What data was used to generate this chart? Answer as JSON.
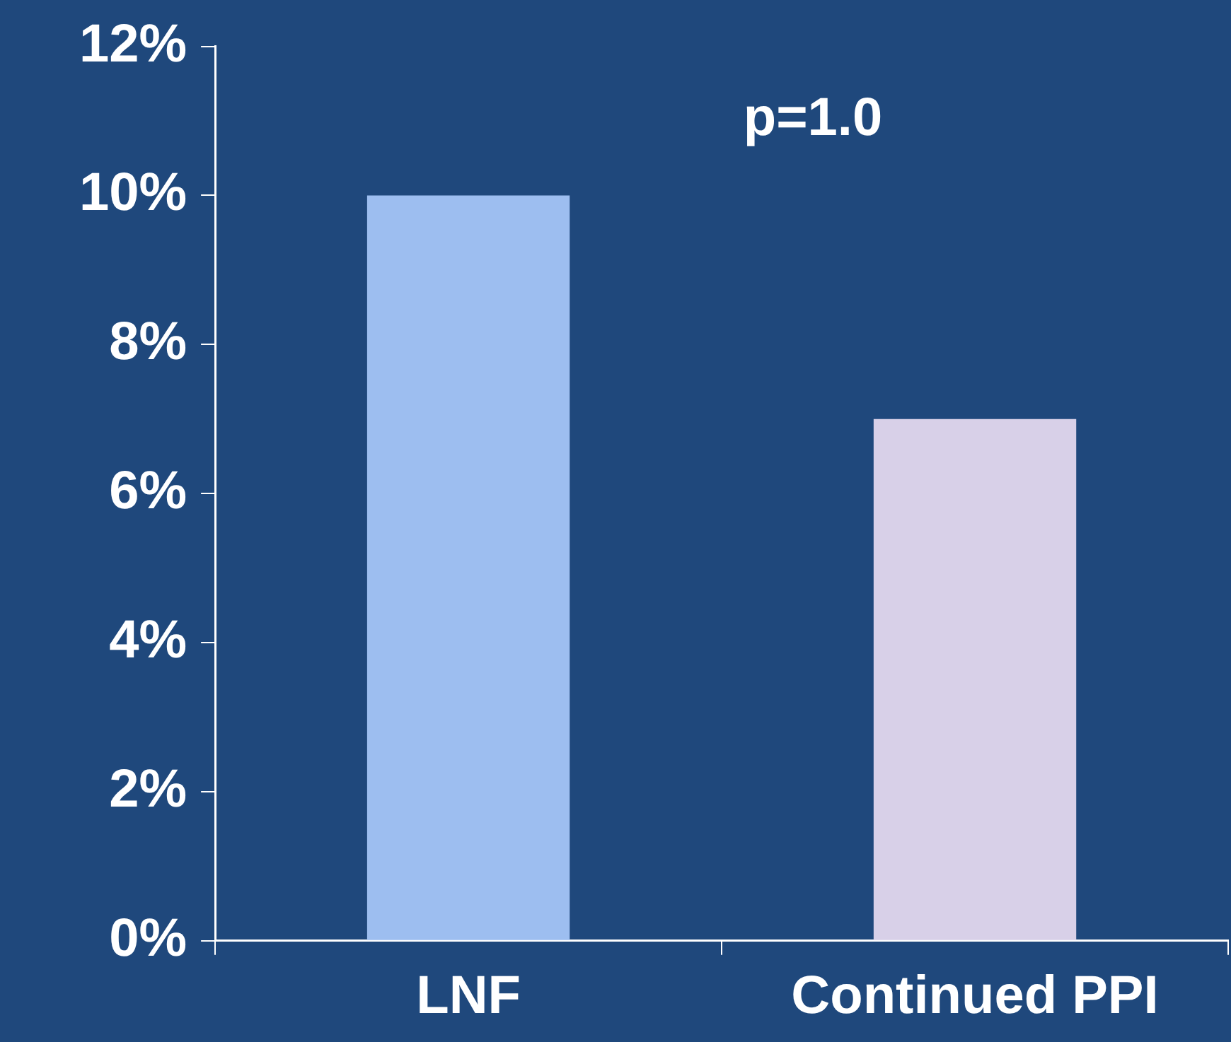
{
  "chart_data": {
    "type": "bar",
    "categories": [
      "LNF",
      "Continued PPI"
    ],
    "values": [
      10,
      7
    ],
    "colors": [
      "#9dbef0",
      "#d8d0e8"
    ],
    "ylim": [
      0,
      12
    ],
    "yticks": [
      {
        "value": 0,
        "label": "0%"
      },
      {
        "value": 2,
        "label": "2%"
      },
      {
        "value": 4,
        "label": "4%"
      },
      {
        "value": 6,
        "label": "6%"
      },
      {
        "value": 8,
        "label": "8%"
      },
      {
        "value": 10,
        "label": "10%"
      },
      {
        "value": 12,
        "label": "12%"
      }
    ],
    "annotations": [
      "p=1.0"
    ],
    "grid": false,
    "legend": false
  }
}
